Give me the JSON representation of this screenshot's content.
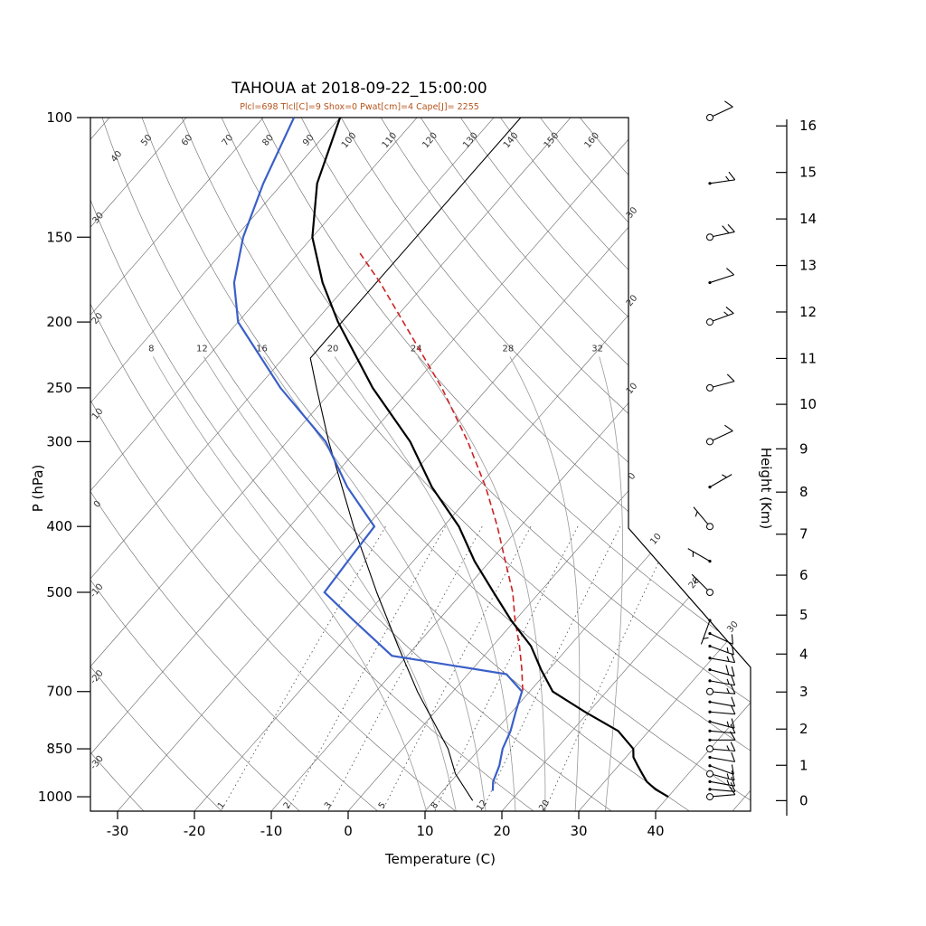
{
  "title": "TAHOUA at 2018-09-22_15:00:00",
  "subtitle": "Plcl=698 Tlcl[C]=9 Shox=0 Pwat[cm]=4 Cape[J]= 2255",
  "diagnostics": {
    "Plcl": 698,
    "Tlcl_C": 9,
    "Shox": 0,
    "Pwat_cm": 4,
    "Cape_J": 2255
  },
  "colors": {
    "subtitle": "#b5541c",
    "temperature": "#000000",
    "dewpoint": "#3a5fc8",
    "parcel": "#cc2222",
    "reference": "#000000",
    "background_line": "#666666",
    "moist_line": "#999999",
    "mixing_line": "#444444"
  },
  "axes": {
    "pressure_label": "P (hPa)",
    "pressure_ticks": [
      100,
      150,
      200,
      250,
      300,
      400,
      500,
      700,
      850,
      1000
    ],
    "temp_label": "Temperature (C)",
    "temp_ticks": [
      -30,
      -20,
      -10,
      0,
      10,
      20,
      30,
      40
    ],
    "height_label": "Height (Km)",
    "height_ticks": [
      0,
      1,
      2,
      3,
      4,
      5,
      6,
      7,
      8,
      9,
      10,
      11,
      12,
      13,
      14,
      15,
      16
    ]
  },
  "background": {
    "isotherm_range": {
      "min": -120,
      "max": 50,
      "step": 10
    },
    "dry_adiabat_range": {
      "min": -40,
      "max": 160,
      "step": 10
    },
    "dry_adiabat_labels": [
      -30,
      -20,
      -10,
      0,
      10,
      20,
      30,
      40,
      50,
      60,
      70,
      80,
      90,
      100,
      110,
      120,
      130,
      140,
      150,
      160
    ],
    "moist_adiabats": [
      8,
      12,
      16,
      20,
      24,
      28,
      32
    ],
    "mixing_ratios": [
      1,
      2,
      3,
      5,
      8,
      12,
      20
    ],
    "isotherm_edge_labels": [
      {
        "t": -30,
        "label": "30"
      },
      {
        "t": -20,
        "label": "20"
      },
      {
        "t": -10,
        "label": "10"
      },
      {
        "t": 0,
        "label": "0"
      },
      {
        "t": 10,
        "label": "10"
      },
      {
        "t": 20,
        "label": "20"
      },
      {
        "t": 30,
        "label": "30"
      }
    ]
  },
  "chart_data": {
    "type": "skewt-logp",
    "layout": {
      "pressure_range": [
        100,
        1050
      ],
      "surface_temp_range": [
        -33.5,
        52
      ],
      "skew_deg": 45
    },
    "temperature": {
      "pressures": [
        1000,
        975,
        950,
        925,
        900,
        875,
        850,
        800,
        750,
        700,
        650,
        600,
        550,
        500,
        450,
        400,
        350,
        300,
        250,
        200,
        175,
        150,
        125,
        100
      ],
      "values": [
        40,
        37.5,
        35.5,
        34,
        32.5,
        31,
        30,
        26,
        19.5,
        13,
        9,
        5,
        -0.5,
        -6,
        -12,
        -18,
        -26,
        -34,
        -45,
        -57,
        -63.5,
        -70,
        -75.5,
        -80
      ]
    },
    "dewpoint": {
      "pressures": [
        980,
        950,
        925,
        900,
        850,
        800,
        750,
        700,
        660,
        620,
        550,
        500,
        450,
        400,
        350,
        300,
        250,
        200,
        175,
        150,
        125,
        100
      ],
      "values": [
        16.5,
        15.5,
        15,
        14.5,
        13,
        12,
        10.5,
        9,
        5,
        -12,
        -21,
        -28,
        -28.5,
        -29,
        -37,
        -45,
        -57,
        -70,
        -75,
        -79,
        -82.5,
        -86
      ]
    },
    "parcel": {
      "lcl_pressure": 698,
      "lcl_temp_c": 9,
      "top_pressure": 157,
      "pressures": [
        698,
        650,
        600,
        550,
        500,
        450,
        400,
        350,
        300,
        250,
        200,
        175,
        157
      ],
      "values": [
        9,
        6.5,
        3.5,
        0,
        -3.5,
        -8,
        -13,
        -19,
        -26.5,
        -36,
        -48.5,
        -56,
        -62.5
      ]
    },
    "reference": {
      "name": "standard-atmosphere",
      "pressures": [
        1013,
        925,
        850,
        700,
        600,
        500,
        400,
        300,
        250,
        226,
        200,
        150,
        100
      ],
      "values": [
        15,
        9.7,
        5.9,
        -4.6,
        -12.3,
        -21.2,
        -31.7,
        -44.6,
        -52.3,
        -56.5,
        -56.5,
        -56.5,
        -56.5
      ]
    },
    "winds": [
      {
        "p": 1000,
        "dir": 85,
        "spd": 10
      },
      {
        "p": 975,
        "dir": 95,
        "spd": 10
      },
      {
        "p": 950,
        "dir": 100,
        "spd": 15
      },
      {
        "p": 925,
        "dir": 105,
        "spd": 15
      },
      {
        "p": 900,
        "dir": 110,
        "spd": 10
      },
      {
        "p": 875,
        "dir": 100,
        "spd": 10
      },
      {
        "p": 850,
        "dir": 95,
        "spd": 15
      },
      {
        "p": 825,
        "dir": 90,
        "spd": 10
      },
      {
        "p": 800,
        "dir": 95,
        "spd": 10
      },
      {
        "p": 775,
        "dir": 105,
        "spd": 15
      },
      {
        "p": 750,
        "dir": 95,
        "spd": 10
      },
      {
        "p": 725,
        "dir": 100,
        "spd": 10
      },
      {
        "p": 700,
        "dir": 95,
        "spd": 15
      },
      {
        "p": 675,
        "dir": 100,
        "spd": 15
      },
      {
        "p": 650,
        "dir": 105,
        "spd": 20
      },
      {
        "p": 625,
        "dir": 100,
        "spd": 15
      },
      {
        "p": 600,
        "dir": 110,
        "spd": 15
      },
      {
        "p": 575,
        "dir": 115,
        "spd": 10
      },
      {
        "p": 550,
        "dir": 200,
        "spd": 5
      },
      {
        "p": 500,
        "dir": 315,
        "spd": 5
      },
      {
        "p": 450,
        "dir": 300,
        "spd": 5
      },
      {
        "p": 400,
        "dir": 320,
        "spd": 5
      },
      {
        "p": 350,
        "dir": 60,
        "spd": 5
      },
      {
        "p": 300,
        "dir": 65,
        "spd": 10
      },
      {
        "p": 250,
        "dir": 75,
        "spd": 10
      },
      {
        "p": 200,
        "dir": 70,
        "spd": 15
      },
      {
        "p": 175,
        "dir": 72,
        "spd": 10
      },
      {
        "p": 150,
        "dir": 78,
        "spd": 20
      },
      {
        "p": 125,
        "dir": 82,
        "spd": 15
      },
      {
        "p": 100,
        "dir": 65,
        "spd": 10
      }
    ],
    "wind_circle_levels": [
      1000,
      925,
      850,
      700,
      500,
      400,
      300,
      250,
      200,
      150,
      100
    ]
  }
}
